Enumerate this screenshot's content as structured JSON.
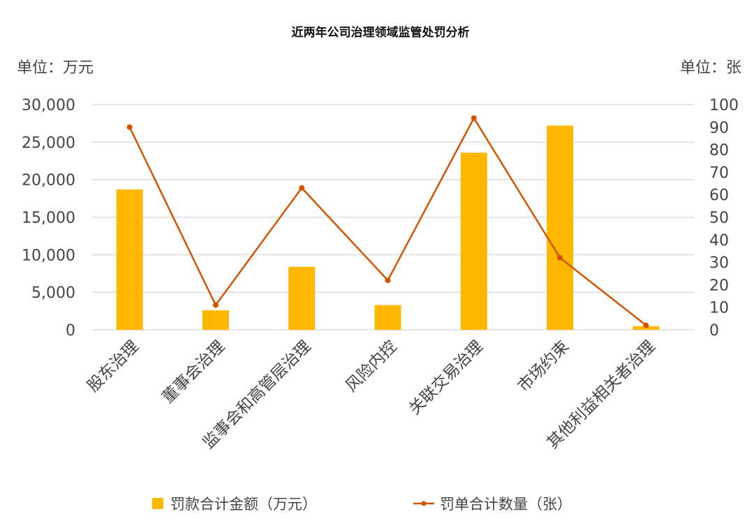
{
  "chart_data": {
    "type": "bar+line",
    "title": "近两年公司治理领域监管处罚分析",
    "left_unit_label": "单位：万元",
    "right_unit_label": "单位：张",
    "categories": [
      "股东治理",
      "董事会治理",
      "监事会和高管层治理",
      "风险内控",
      "关联交易治理",
      "市场约束",
      "其他利益相关者治理"
    ],
    "left_axis": {
      "min": 0,
      "max": 30000,
      "ticks": [
        "0",
        "5,000",
        "10,000",
        "15,000",
        "20,000",
        "25,000",
        "30,000"
      ]
    },
    "right_axis": {
      "min": 0,
      "max": 100,
      "ticks": [
        "0",
        "10",
        "20",
        "30",
        "40",
        "50",
        "60",
        "70",
        "80",
        "90",
        "100"
      ]
    },
    "grid": true,
    "legend_position": "bottom",
    "series": [
      {
        "name": "罚款合计金额（万元）",
        "type": "bar",
        "axis": "left",
        "color": "#FFB800",
        "values": [
          18700,
          2600,
          8400,
          3300,
          23600,
          27200,
          500
        ]
      },
      {
        "name": "罚单合计数量（张）",
        "type": "line",
        "axis": "right",
        "color": "#D35400",
        "values": [
          90,
          11,
          63,
          22,
          94,
          32,
          2
        ]
      }
    ]
  }
}
